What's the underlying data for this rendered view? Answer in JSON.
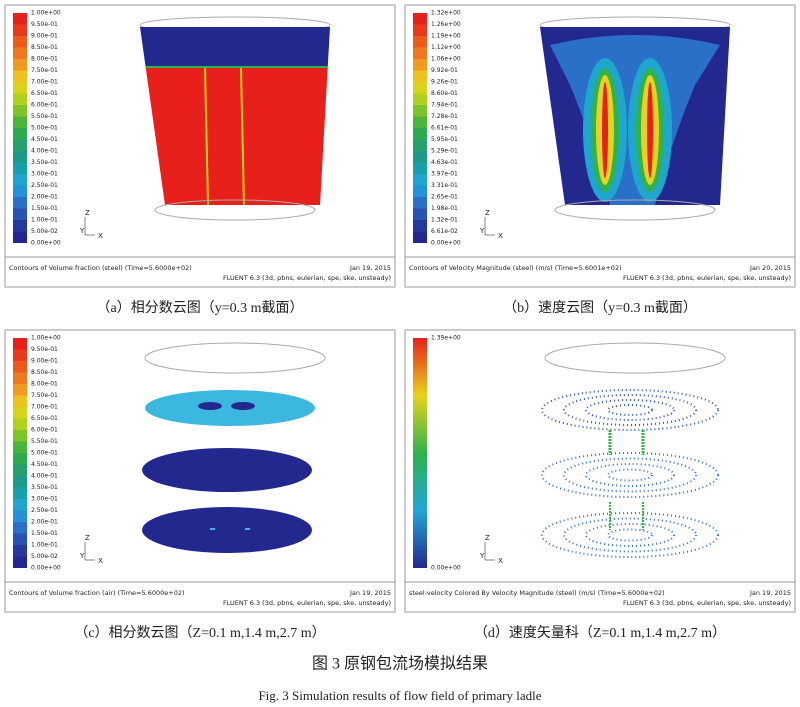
{
  "panels": [
    {
      "caption": "（a）相分数云图（y=0.3 m截面）",
      "colorbar": [
        "1.00e+00",
        "9.50e-01",
        "9.00e-01",
        "8.50e-01",
        "8.00e-01",
        "7.50e-01",
        "7.00e-01",
        "6.50e-01",
        "6.00e-01",
        "5.50e-01",
        "5.00e-01",
        "4.50e-01",
        "4.00e-01",
        "3.50e-01",
        "3.00e-01",
        "2.50e-01",
        "2.00e-01",
        "1.50e-01",
        "1.00e-01",
        "5.00e-02",
        "0.00e+00"
      ],
      "axes": [
        "Z",
        "Y",
        "X"
      ],
      "footer": {
        "description": "Contours of Volume fraction (steel)  (Time=5.6000e+02)",
        "date": "Jan 19, 2015",
        "solver": "FLUENT 6.3 (3d, pbns, eulerian, spe, ske, unsteady)"
      }
    },
    {
      "caption": "（b）速度云图（y=0.3 m截面）",
      "colorbar": [
        "1.32e+00",
        "1.26e+00",
        "1.19e+00",
        "1.12e+00",
        "1.06e+00",
        "9.92e-01",
        "9.26e-01",
        "8.60e-01",
        "7.94e-01",
        "7.28e-01",
        "6.61e-01",
        "5.95e-01",
        "5.29e-01",
        "4.63e-01",
        "3.97e-01",
        "3.31e-01",
        "2.65e-01",
        "1.98e-01",
        "1.32e-01",
        "6.61e-02",
        "0.00e+00"
      ],
      "axes": [
        "Z",
        "Y",
        "X"
      ],
      "footer": {
        "description": "Contours of Velocity Magnitude (steel)  (m/s)  (Time=5.6001e+02)",
        "date": "Jan 20, 2015",
        "solver": "FLUENT 6.3 (3d, pbns, eulerian, spe, ske, unsteady)"
      }
    },
    {
      "caption": "（c）相分数云图（Z=0.1 m,1.4 m,2.7 m）",
      "colorbar": [
        "1.00e+00",
        "9.50e-01",
        "9.00e-01",
        "8.50e-01",
        "8.00e-01",
        "7.50e-01",
        "7.00e-01",
        "6.50e-01",
        "6.00e-01",
        "5.50e-01",
        "5.00e-01",
        "4.50e-01",
        "4.00e-01",
        "3.50e-01",
        "3.00e-01",
        "2.50e-01",
        "2.00e-01",
        "1.50e-01",
        "1.00e-01",
        "5.00e-02",
        "0.00e+00"
      ],
      "axes": [
        "Z",
        "Y",
        "X"
      ],
      "footer": {
        "description": "Contours of Volume fraction (air)  (Time=5.6000e+02)",
        "date": "Jan 19, 2015",
        "solver": "FLUENT 6.3 (3d, pbns, eulerian, spe, ske, unsteady)"
      }
    },
    {
      "caption": "（d）速度矢量科（Z=0.1 m,1.4 m,2.7 m）",
      "colorbar": [
        "1.39e+00",
        "0.00e+00"
      ],
      "axes": [
        "Z",
        "Y",
        "X"
      ],
      "footer": {
        "description": "steel-velocity Colored By Velocity Magnitude (steel)  (m/s)  (Time=5.6000e+02)",
        "date": "Jan 19, 2015",
        "solver": "FLUENT 6.3 (3d, pbns, eulerian, spe, ske, unsteady)"
      }
    }
  ],
  "figure": {
    "title_cn": "图 3    原钢包流场模拟结果",
    "title_en": "Fig. 3    Simulation results of flow field of primary ladle"
  }
}
